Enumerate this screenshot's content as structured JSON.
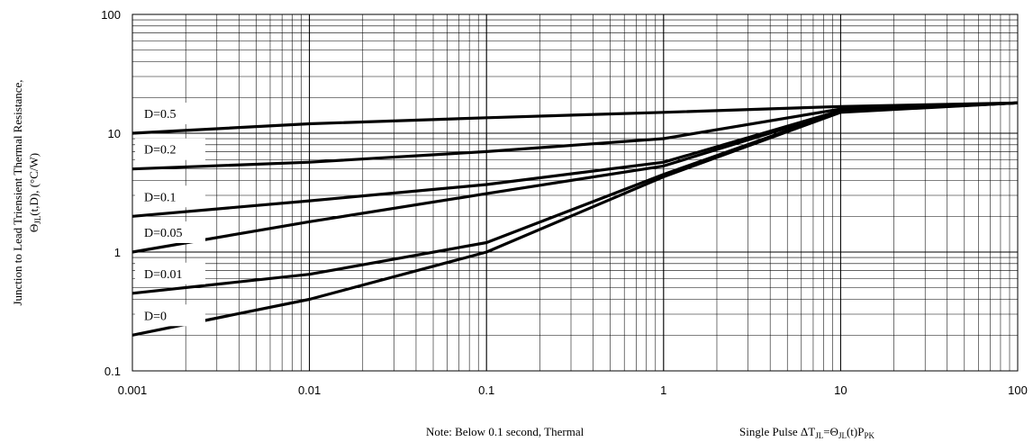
{
  "chart_data": {
    "type": "line",
    "x_scale": "log",
    "y_scale": "log",
    "xlim": [
      0.001,
      100
    ],
    "ylim": [
      0.1,
      100
    ],
    "grid": true,
    "x_ticks": [
      "0.001",
      "0.01",
      "0.1",
      "1",
      "10",
      "100"
    ],
    "y_ticks": [
      "0.1",
      "1",
      "10",
      "100"
    ],
    "ylabel_line1": "Junction to Lead Triensient Thermal Resistance,",
    "ylabel_line2_main": "Θ",
    "ylabel_line2_sub": "JL",
    "ylabel_line2_rest": "(t,D),  (°C/W)",
    "note": "Note: Below 0.1 second, Thermal",
    "formula": {
      "text1": "Single Pulse ΔT",
      "sub1": "JL",
      "text2": "=Θ",
      "sub2": "JL",
      "text3": "(t)P",
      "sub3": "PK"
    },
    "series": [
      {
        "name": "D=0.5",
        "x": [
          0.001,
          0.01,
          0.1,
          1,
          10,
          100
        ],
        "y": [
          10,
          12,
          13.5,
          15,
          16.8,
          18
        ]
      },
      {
        "name": "D=0.2",
        "x": [
          0.001,
          0.01,
          0.1,
          1,
          10,
          100
        ],
        "y": [
          5,
          5.7,
          7,
          9,
          16,
          18
        ]
      },
      {
        "name": "D=0.1",
        "x": [
          0.001,
          0.01,
          0.1,
          1,
          10,
          100
        ],
        "y": [
          2,
          2.7,
          3.7,
          5.7,
          15.5,
          18
        ]
      },
      {
        "name": "D=0.05",
        "x": [
          0.001,
          0.01,
          0.1,
          1,
          10,
          100
        ],
        "y": [
          1,
          1.8,
          3.1,
          5.3,
          15.3,
          18
        ]
      },
      {
        "name": "D=0.01",
        "x": [
          0.001,
          0.01,
          0.1,
          1,
          10,
          100
        ],
        "y": [
          0.45,
          0.65,
          1.2,
          4.5,
          15.2,
          18
        ]
      },
      {
        "name": "D=0",
        "x": [
          0.001,
          0.01,
          0.1,
          1,
          10,
          100
        ],
        "y": [
          0.2,
          0.4,
          1.0,
          4.3,
          15,
          18
        ]
      }
    ]
  }
}
